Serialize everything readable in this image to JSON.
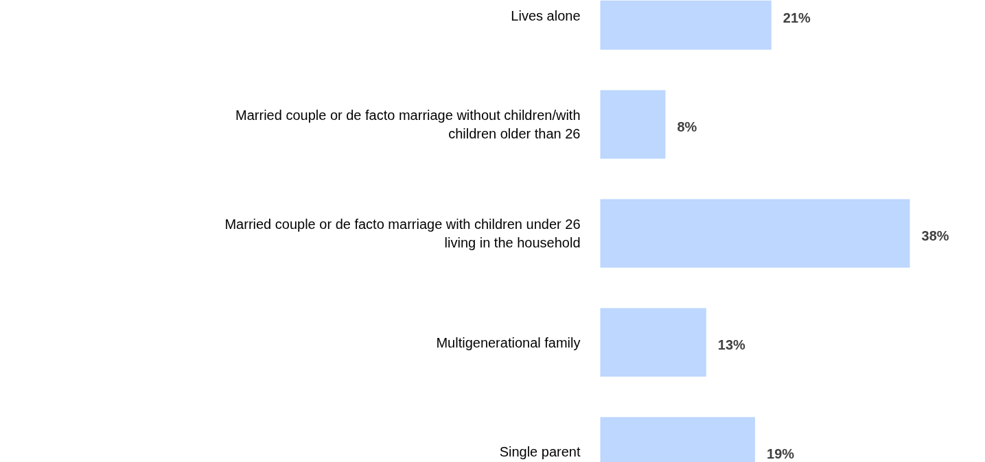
{
  "chart_data": {
    "type": "bar",
    "orientation": "horizontal",
    "relative": false,
    "categories": [
      "Lives alone",
      "Married couple or de facto marriage without children/with children older than 26",
      "Married couple or de facto marriage with children under 26 living in the household",
      "Multigenerational family",
      "Single parent"
    ],
    "values": [
      21,
      8,
      38,
      13,
      19
    ],
    "value_labels": [
      "21%",
      "8%",
      "38%",
      "13%",
      "19%"
    ],
    "color": "#bdd7fe",
    "grid": false,
    "tick_labels": false
  }
}
